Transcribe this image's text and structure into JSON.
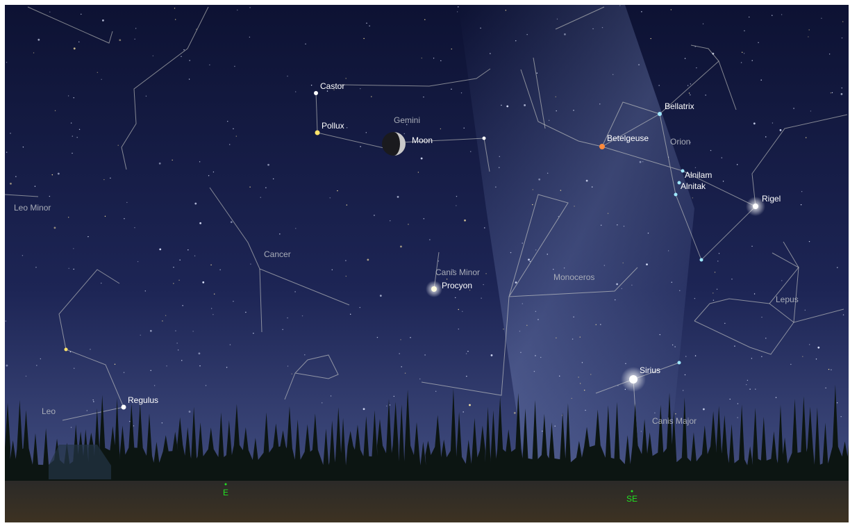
{
  "stars": [
    "Castor",
    "Pollux",
    "Moon",
    "Betelgeuse",
    "Bellatrix",
    "Alnilam",
    "Alnitak",
    "Rigel",
    "Procyon",
    "Sirius",
    "Regulus"
  ],
  "constellations": [
    "Gemini",
    "Orion",
    "Leo Minor",
    "Cancer",
    "Canis Minor",
    "Monoceros",
    "Lepus",
    "Canis Major",
    "Leo"
  ],
  "compass": [
    "E",
    "SE"
  ]
}
